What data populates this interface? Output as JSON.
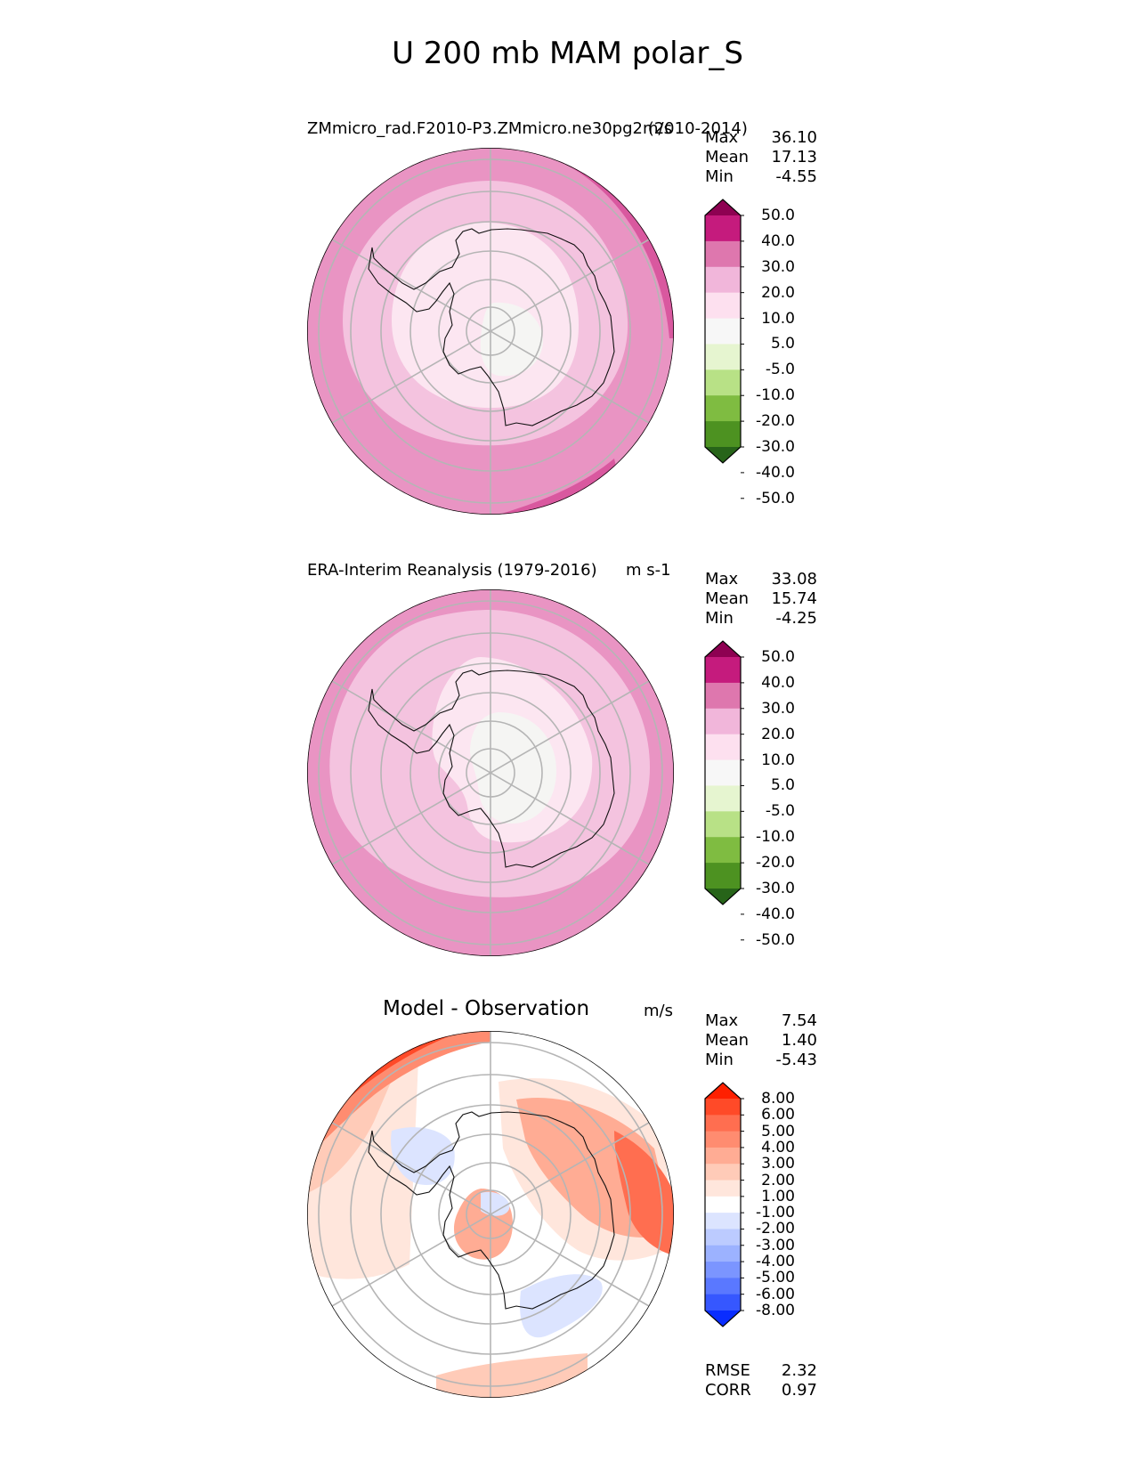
{
  "figure_title": "U 200 mb MAM polar_S",
  "chart_data": [
    {
      "type": "heatmap",
      "projection": "south-polar-stereographic",
      "title": "ZMmicro_rad.F2010-P3.ZMmicro.ne30pg2 (2010-2014)",
      "units": "m/s",
      "stats": [
        {
          "label": "Max",
          "value": "36.10"
        },
        {
          "label": "Mean",
          "value": "17.13"
        },
        {
          "label": "Min",
          "value": "-4.55"
        }
      ],
      "colorbar": {
        "levels": [
          "50.0",
          "40.0",
          "30.0",
          "20.0",
          "10.0",
          "5.0",
          "-5.0",
          "-10.0",
          "-20.0",
          "-30.0",
          "-40.0",
          "-50.0"
        ],
        "colors": [
          "#8e0152",
          "#c51b7d",
          "#de77ae",
          "#f1b6da",
          "#fde0ef",
          "#f7f7f7",
          "#e6f5d0",
          "#b8e186",
          "#7fbc41",
          "#4d9221",
          "#276419"
        ]
      }
    },
    {
      "type": "heatmap",
      "projection": "south-polar-stereographic",
      "title": "ERA-Interim Reanalysis (1979-2016)",
      "units": "m s-1",
      "stats": [
        {
          "label": "Max",
          "value": "33.08"
        },
        {
          "label": "Mean",
          "value": "15.74"
        },
        {
          "label": "Min",
          "value": "-4.25"
        }
      ],
      "colorbar": {
        "levels": [
          "50.0",
          "40.0",
          "30.0",
          "20.0",
          "10.0",
          "5.0",
          "-5.0",
          "-10.0",
          "-20.0",
          "-30.0",
          "-40.0",
          "-50.0"
        ],
        "colors": [
          "#8e0152",
          "#c51b7d",
          "#de77ae",
          "#f1b6da",
          "#fde0ef",
          "#f7f7f7",
          "#e6f5d0",
          "#b8e186",
          "#7fbc41",
          "#4d9221",
          "#276419"
        ]
      }
    },
    {
      "type": "heatmap",
      "projection": "south-polar-stereographic",
      "title": "Model - Observation",
      "units": "m/s",
      "stats": [
        {
          "label": "Max",
          "value": "7.54"
        },
        {
          "label": "Mean",
          "value": "1.40"
        },
        {
          "label": "Min",
          "value": "-5.43"
        }
      ],
      "extra_stats": [
        {
          "label": "RMSE",
          "value": "2.32"
        },
        {
          "label": "CORR",
          "value": "0.97"
        }
      ],
      "colorbar": {
        "levels": [
          "8.00",
          "6.00",
          "5.00",
          "4.00",
          "3.00",
          "2.00",
          "1.00",
          "-1.00",
          "-2.00",
          "-3.00",
          "-4.00",
          "-5.00",
          "-6.00",
          "-8.00"
        ],
        "colors": [
          "#ff2000",
          "#ff4a28",
          "#ff6e50",
          "#ff8c70",
          "#ffac94",
          "#ffcbb8",
          "#ffe6dc",
          "#ffffff",
          "#dce4ff",
          "#bccbff",
          "#9cb2ff",
          "#7b95ff",
          "#5a78ff",
          "#3657ff",
          "#0a2dff"
        ]
      }
    }
  ]
}
